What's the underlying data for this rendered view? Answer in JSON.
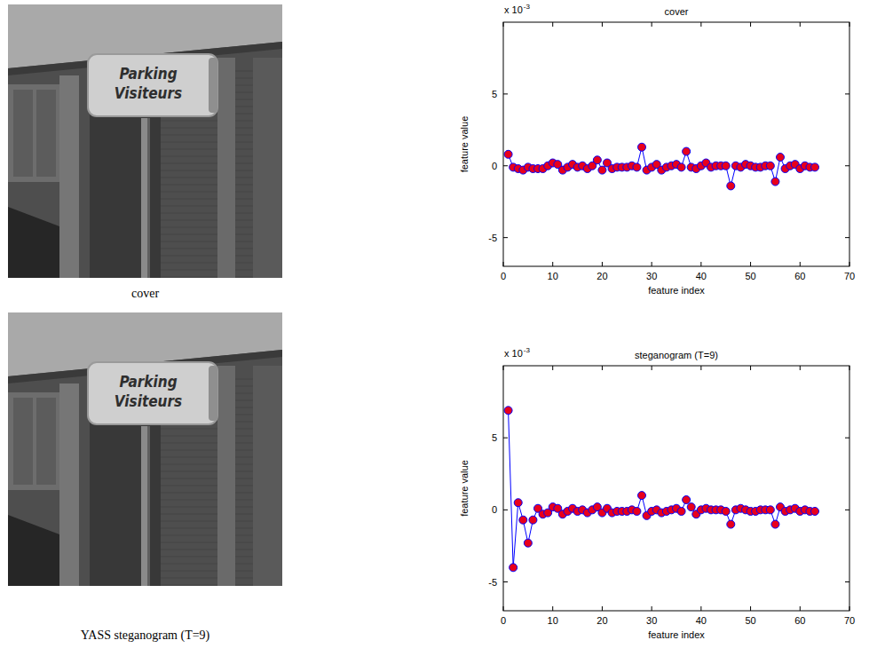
{
  "chart_data": [
    {
      "type": "line",
      "title": "cover",
      "x_label": "feature index",
      "y_label": "feature value",
      "y_multiplier": {
        "text": "x 10",
        "exponent": "-3"
      },
      "x": [
        1,
        2,
        3,
        4,
        5,
        6,
        7,
        8,
        9,
        10,
        11,
        12,
        13,
        14,
        15,
        16,
        17,
        18,
        19,
        20,
        21,
        22,
        23,
        24,
        25,
        26,
        27,
        28,
        29,
        30,
        31,
        32,
        33,
        34,
        35,
        36,
        37,
        38,
        39,
        40,
        41,
        42,
        43,
        44,
        45,
        46,
        47,
        48,
        49,
        50,
        51,
        52,
        53,
        54,
        55,
        56,
        57,
        58,
        59,
        60,
        61,
        62,
        63
      ],
      "values": [
        0.8,
        -0.1,
        -0.2,
        -0.3,
        -0.1,
        -0.2,
        -0.2,
        -0.2,
        0,
        0.2,
        0.1,
        -0.3,
        -0.1,
        0.1,
        -0.1,
        0,
        -0.2,
        0,
        0.4,
        -0.3,
        0.2,
        -0.2,
        -0.1,
        -0.1,
        -0.1,
        0,
        -0.1,
        1.3,
        -0.3,
        -0.1,
        0.1,
        -0.3,
        -0.1,
        0,
        0.1,
        -0.1,
        1.0,
        -0.1,
        -0.2,
        0,
        0.2,
        -0.1,
        0,
        0,
        0,
        -1.4,
        0,
        -0.1,
        0.1,
        0,
        -0.1,
        -0.1,
        0,
        0,
        -1.1,
        0.6,
        -0.2,
        0,
        0.1,
        -0.2,
        0,
        -0.1,
        -0.1
      ],
      "xlim": [
        0,
        70
      ],
      "xticks": [
        0,
        10,
        20,
        30,
        40,
        50,
        60,
        70
      ],
      "ylim": [
        -7,
        10
      ],
      "yticks": [
        -5,
        0,
        5
      ],
      "color": "#0000ff",
      "marker": "circle",
      "grid": false
    },
    {
      "type": "line",
      "title": "steganogram (T=9)",
      "x_label": "feature index",
      "y_label": "feature value",
      "y_multiplier": {
        "text": "x 10",
        "exponent": "-3"
      },
      "x": [
        1,
        2,
        3,
        4,
        5,
        6,
        7,
        8,
        9,
        10,
        11,
        12,
        13,
        14,
        15,
        16,
        17,
        18,
        19,
        20,
        21,
        22,
        23,
        24,
        25,
        26,
        27,
        28,
        29,
        30,
        31,
        32,
        33,
        34,
        35,
        36,
        37,
        38,
        39,
        40,
        41,
        42,
        43,
        44,
        45,
        46,
        47,
        48,
        49,
        50,
        51,
        52,
        53,
        54,
        55,
        56,
        57,
        58,
        59,
        60,
        61,
        62,
        63
      ],
      "values": [
        6.9,
        -4.0,
        0.5,
        -0.7,
        -2.3,
        -0.7,
        0.1,
        -0.3,
        -0.2,
        0.2,
        0.1,
        -0.3,
        -0.1,
        0.1,
        -0.1,
        0,
        -0.2,
        0,
        0.2,
        -0.2,
        0.1,
        -0.2,
        -0.1,
        -0.1,
        -0.1,
        0,
        -0.1,
        1.0,
        -0.4,
        -0.1,
        0,
        -0.2,
        -0.1,
        0,
        0.1,
        -0.1,
        0.7,
        0.2,
        -0.3,
        0,
        0.1,
        0,
        0,
        0,
        -0.1,
        -1.0,
        0,
        0.1,
        0,
        -0.1,
        -0.1,
        0,
        0,
        0,
        -1.0,
        0.2,
        -0.1,
        0,
        0.1,
        -0.1,
        0,
        -0.1,
        -0.1
      ],
      "xlim": [
        0,
        70
      ],
      "xticks": [
        0,
        10,
        20,
        30,
        40,
        50,
        60,
        70
      ],
      "ylim": [
        -7,
        10
      ],
      "yticks": [
        -5,
        0,
        5
      ],
      "color": "#0000ff",
      "marker": "circle",
      "grid": false
    }
  ],
  "images": [
    {
      "caption": "cover",
      "sign_text": [
        "Parking",
        "Visiteurs"
      ]
    },
    {
      "caption": "YASS steganogram (T=9)",
      "sign_text": [
        "Parking",
        "Visiteurs"
      ]
    }
  ]
}
